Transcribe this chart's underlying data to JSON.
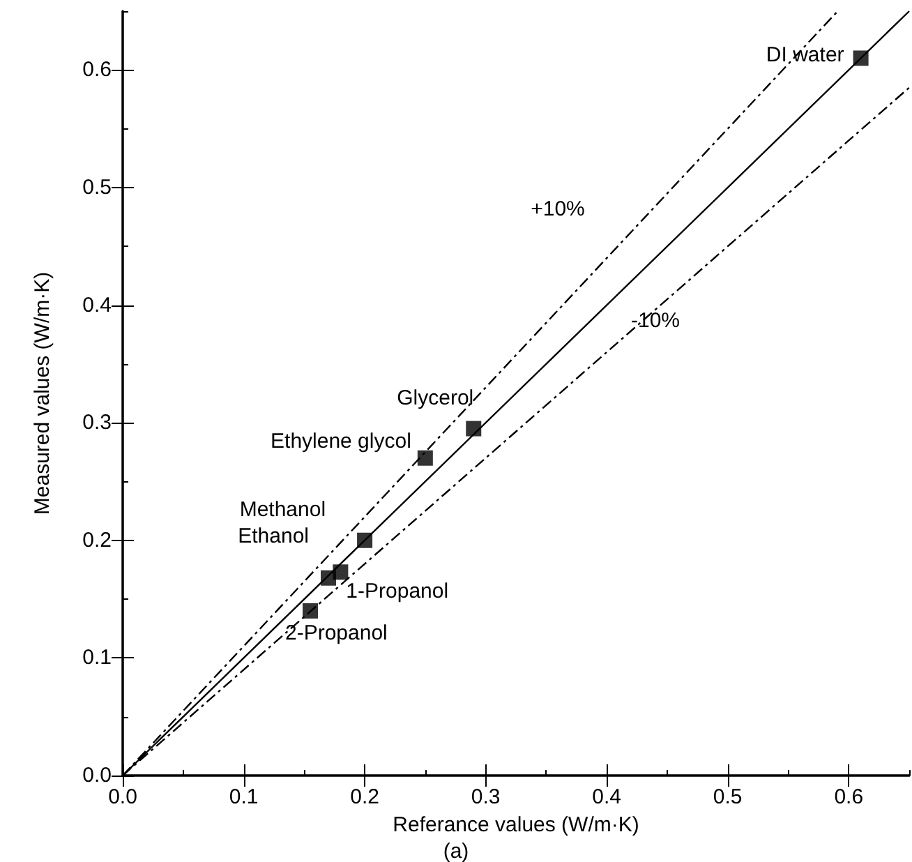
{
  "chart_data": {
    "type": "scatter",
    "xlabel": "Referance values (W/m·K)",
    "ylabel": "Measured values (W/m·K)",
    "subtitle": "(a)",
    "xlim": [
      0,
      0.65
    ],
    "ylim": [
      0,
      0.65
    ],
    "xticks": [
      {
        "value": 0,
        "label": "0.0"
      },
      0.1,
      0.2,
      0.3,
      0.4,
      0.5,
      0.6
    ],
    "yticks": [
      {
        "value": 0,
        "label": "0.0"
      },
      0.1,
      0.2,
      0.3,
      0.4,
      0.5,
      0.6
    ],
    "grid": false,
    "series": [
      {
        "color": "#000000",
        "marker": "square",
        "x": [
          0.61,
          0.29,
          0.25,
          0.2,
          0.17,
          0.18,
          0.155
        ],
        "values": [
          0.61,
          0.295,
          0.27,
          0.2,
          0.168,
          0.173,
          0.14
        ]
      },
      {
        "type": "line",
        "color": "#000000",
        "line_style": "solid",
        "marker": "none",
        "x": [
          0,
          0.65
        ],
        "values": [
          0,
          0.65
        ]
      },
      {
        "type": "line",
        "color": "#000000",
        "line_style": "dashed",
        "marker": "none",
        "x": [
          0,
          0.59
        ],
        "values": [
          0,
          0.649
        ]
      },
      {
        "type": "line",
        "color": "#000000",
        "line_style": "dashed",
        "marker": "none",
        "x": [
          0,
          0.65
        ],
        "values": [
          0,
          0.585
        ]
      }
    ],
    "annotations": [
      {
        "text": "DI water",
        "x": 0.61,
        "y": 0.61
      },
      {
        "text": "Glycerol",
        "x": 0.29,
        "y": 0.295
      },
      {
        "text": "Ethylene glycol",
        "x": 0.25,
        "y": 0.27
      },
      {
        "text": "Methanol",
        "x": 0.2,
        "y": 0.2
      },
      {
        "text": "Ethanol",
        "x": 0.17,
        "y": 0.168
      },
      {
        "text": "1-Propanol",
        "x": 0.18,
        "y": 0.173
      },
      {
        "text": "2-Propanol",
        "x": 0.155,
        "y": 0.14
      },
      "+10%",
      "-10%"
    ]
  }
}
